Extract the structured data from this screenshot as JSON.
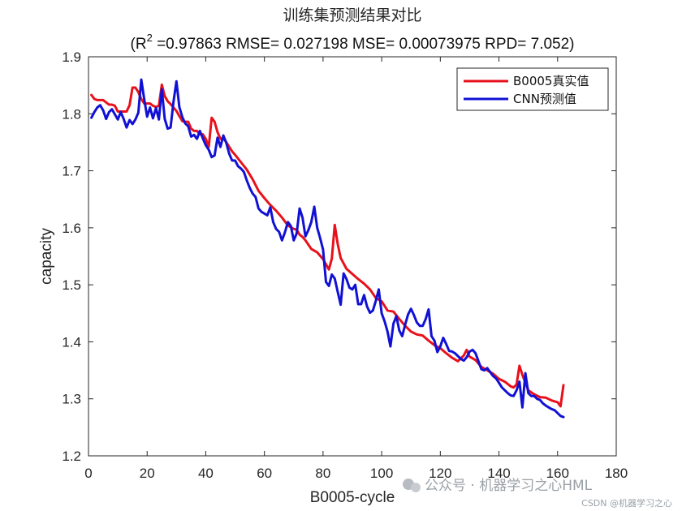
{
  "chart_data": {
    "type": "line",
    "title": "训练集预测结果对比",
    "subtitle": {
      "prefix": "(R",
      "superscript": "2",
      "rest": " =0.97863 RMSE= 0.027198 MSE= 0.00073975 RPD= 7.052)"
    },
    "xlabel": "B0005-cycle",
    "ylabel": "capacity",
    "xlim": [
      0,
      180
    ],
    "ylim": [
      1.2,
      1.9
    ],
    "xticks": [
      0,
      20,
      40,
      60,
      80,
      100,
      120,
      140,
      160,
      180
    ],
    "yticks": [
      1.2,
      1.3,
      1.4,
      1.5,
      1.6,
      1.7,
      1.8,
      1.9
    ],
    "legend_position": "top-right",
    "grid": false,
    "series": [
      {
        "name": "B0005真实值",
        "color": "#e8111b",
        "x": [
          1,
          2,
          3,
          5,
          7,
          8,
          9,
          10,
          11,
          12,
          13,
          14,
          15,
          16,
          17,
          18,
          19,
          20,
          21,
          22,
          23,
          24,
          25,
          26,
          27,
          28,
          29,
          30,
          31,
          32,
          33,
          34,
          35,
          36,
          37,
          38,
          39,
          40,
          41,
          42,
          43,
          44,
          45,
          46,
          47,
          48,
          49,
          50,
          52,
          54,
          56,
          58,
          60,
          62,
          64,
          66,
          68,
          70,
          71,
          72,
          73,
          74,
          76,
          78,
          80,
          82,
          83,
          84,
          85,
          86,
          88,
          90,
          92,
          94,
          96,
          98,
          100,
          102,
          104,
          106,
          108,
          110,
          112,
          114,
          116,
          118,
          120,
          122,
          124,
          126,
          128,
          129,
          130,
          132,
          134,
          136,
          138,
          140,
          142,
          144,
          145,
          146,
          147,
          148,
          150,
          152,
          154,
          156,
          158,
          160,
          161,
          162
        ],
        "values": [
          1.833,
          1.826,
          1.824,
          1.824,
          1.816,
          1.816,
          1.814,
          1.804,
          1.804,
          1.804,
          1.804,
          1.815,
          1.846,
          1.846,
          1.838,
          1.826,
          1.818,
          1.818,
          1.818,
          1.814,
          1.812,
          1.814,
          1.851,
          1.831,
          1.822,
          1.817,
          1.811,
          1.805,
          1.796,
          1.787,
          1.786,
          1.786,
          1.774,
          1.77,
          1.77,
          1.764,
          1.764,
          1.756,
          1.742,
          1.793,
          1.786,
          1.768,
          1.756,
          1.757,
          1.75,
          1.742,
          1.734,
          1.728,
          1.715,
          1.702,
          1.685,
          1.665,
          1.652,
          1.64,
          1.63,
          1.618,
          1.604,
          1.598,
          1.597,
          1.588,
          1.584,
          1.578,
          1.563,
          1.557,
          1.545,
          1.527,
          1.546,
          1.605,
          1.572,
          1.547,
          1.528,
          1.519,
          1.51,
          1.502,
          1.492,
          1.477,
          1.471,
          1.455,
          1.453,
          1.44,
          1.428,
          1.418,
          1.413,
          1.411,
          1.402,
          1.394,
          1.389,
          1.38,
          1.372,
          1.366,
          1.376,
          1.386,
          1.374,
          1.368,
          1.356,
          1.35,
          1.344,
          1.335,
          1.33,
          1.322,
          1.32,
          1.325,
          1.358,
          1.342,
          1.315,
          1.308,
          1.303,
          1.302,
          1.297,
          1.294,
          1.287,
          1.324
        ]
      },
      {
        "name": "CNN预测值",
        "color": "#1111d6",
        "x": [
          1,
          2,
          3,
          4,
          5,
          6,
          7,
          8,
          9,
          10,
          11,
          12,
          13,
          14,
          15,
          16,
          17,
          18,
          19,
          20,
          21,
          22,
          23,
          24,
          25,
          26,
          27,
          28,
          29,
          30,
          31,
          32,
          33,
          34,
          35,
          36,
          37,
          38,
          39,
          40,
          41,
          42,
          43,
          44,
          45,
          46,
          47,
          48,
          49,
          50,
          51,
          52,
          53,
          54,
          55,
          56,
          57,
          58,
          59,
          60,
          61,
          62,
          63,
          64,
          65,
          66,
          67,
          68,
          69,
          70,
          71,
          72,
          73,
          74,
          75,
          76,
          77,
          78,
          79,
          80,
          81,
          82,
          83,
          84,
          85,
          86,
          87,
          88,
          89,
          90,
          91,
          92,
          93,
          94,
          95,
          96,
          97,
          98,
          99,
          100,
          101,
          102,
          103,
          104,
          105,
          106,
          107,
          108,
          109,
          110,
          111,
          112,
          113,
          114,
          115,
          116,
          117,
          118,
          119,
          120,
          121,
          122,
          123,
          124,
          125,
          126,
          127,
          128,
          129,
          130,
          131,
          132,
          133,
          134,
          135,
          136,
          137,
          138,
          139,
          140,
          141,
          142,
          143,
          144,
          145,
          146,
          147,
          148,
          149,
          150,
          151,
          152,
          153,
          154,
          155,
          156,
          157,
          158,
          159,
          160,
          161,
          162
        ],
        "values": [
          1.793,
          1.803,
          1.811,
          1.815,
          1.806,
          1.791,
          1.803,
          1.808,
          1.799,
          1.79,
          1.803,
          1.791,
          1.776,
          1.789,
          1.782,
          1.79,
          1.802,
          1.86,
          1.826,
          1.795,
          1.811,
          1.792,
          1.81,
          1.79,
          1.843,
          1.791,
          1.774,
          1.776,
          1.821,
          1.857,
          1.812,
          1.794,
          1.783,
          1.778,
          1.76,
          1.763,
          1.756,
          1.77,
          1.757,
          1.745,
          1.737,
          1.724,
          1.727,
          1.758,
          1.742,
          1.762,
          1.749,
          1.73,
          1.718,
          1.718,
          1.708,
          1.704,
          1.698,
          1.683,
          1.67,
          1.66,
          1.654,
          1.634,
          1.628,
          1.625,
          1.622,
          1.636,
          1.61,
          1.598,
          1.593,
          1.578,
          1.592,
          1.61,
          1.603,
          1.578,
          1.59,
          1.634,
          1.618,
          1.585,
          1.596,
          1.61,
          1.637,
          1.6,
          1.582,
          1.562,
          1.505,
          1.498,
          1.518,
          1.511,
          1.488,
          1.465,
          1.52,
          1.51,
          1.495,
          1.492,
          1.5,
          1.466,
          1.466,
          1.482,
          1.462,
          1.451,
          1.455,
          1.472,
          1.492,
          1.45,
          1.436,
          1.418,
          1.392,
          1.432,
          1.445,
          1.42,
          1.41,
          1.43,
          1.448,
          1.458,
          1.447,
          1.434,
          1.428,
          1.428,
          1.44,
          1.457,
          1.41,
          1.402,
          1.382,
          1.392,
          1.407,
          1.396,
          1.384,
          1.383,
          1.38,
          1.375,
          1.37,
          1.367,
          1.373,
          1.383,
          1.386,
          1.38,
          1.366,
          1.352,
          1.35,
          1.354,
          1.347,
          1.34,
          1.336,
          1.328,
          1.32,
          1.315,
          1.31,
          1.306,
          1.305,
          1.315,
          1.33,
          1.285,
          1.345,
          1.31,
          1.305,
          1.305,
          1.3,
          1.298,
          1.292,
          1.288,
          1.285,
          1.282,
          1.28,
          1.275,
          1.27,
          1.268
        ]
      }
    ]
  },
  "watermark": {
    "main": "公众号 · 机器学习之心HML",
    "sub": "CSDN @机器学习之心"
  }
}
